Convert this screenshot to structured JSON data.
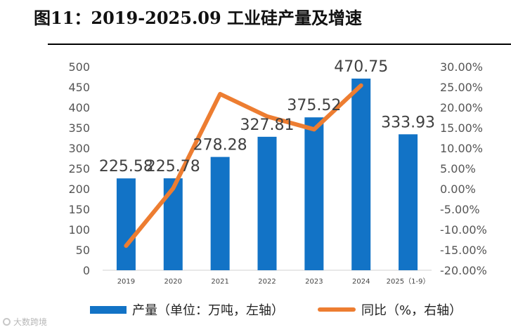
{
  "chart_data": {
    "type": "bar",
    "title": "图11：2019-2025.09 工业硅产量及增速",
    "categories": [
      "2019",
      "2020",
      "2021",
      "2022",
      "2023",
      "2024",
      "2025（1-9）"
    ],
    "series": [
      {
        "name": "产量（单位：万吨，左轴）",
        "type": "bar",
        "axis": "left",
        "color": "#1273c6",
        "values": [
          225.58,
          225.78,
          278.28,
          327.81,
          375.52,
          470.75,
          333.93
        ],
        "labels": [
          "225.58",
          "225.78",
          "278.28",
          "327.81",
          "375.52",
          "470.75",
          "333.93"
        ]
      },
      {
        "name": "同比（%，右轴）",
        "type": "line",
        "axis": "right",
        "color": "#ed7d31",
        "values": [
          -14.0,
          0.1,
          23.3,
          17.8,
          14.6,
          25.4,
          null
        ]
      }
    ],
    "left_axis": {
      "min": 0,
      "max": 500,
      "step": 50,
      "ticks": [
        "0",
        "50",
        "100",
        "150",
        "200",
        "250",
        "300",
        "350",
        "400",
        "450",
        "500"
      ]
    },
    "right_axis": {
      "min": -20,
      "max": 30,
      "step": 5,
      "ticks": [
        "-20.00%",
        "-15.00%",
        "-10.00%",
        "-5.00%",
        "0.00%",
        "5.00%",
        "10.00%",
        "15.00%",
        "20.00%",
        "25.00%",
        "30.00%"
      ]
    },
    "grid": false,
    "legend_position": "bottom"
  },
  "watermark": "大数跨境"
}
